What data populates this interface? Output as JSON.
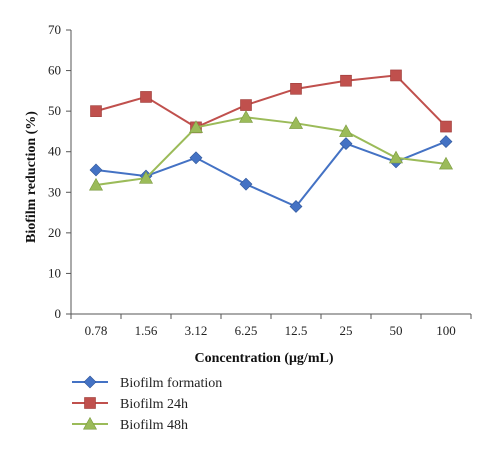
{
  "chart_data": {
    "type": "line",
    "xlabel": "Concentration (μg/mL)",
    "ylabel": "Biofilm reduction (%)",
    "ylim": [
      0,
      70
    ],
    "yticks": [
      0,
      10,
      20,
      30,
      40,
      50,
      60,
      70
    ],
    "categories": [
      "0.78",
      "1.56",
      "3.12",
      "6.25",
      "12.5",
      "25",
      "50",
      "100"
    ],
    "grid": false,
    "legend_position": "bottom-left",
    "series": [
      {
        "name": "Biofilm formation",
        "color": "#4472c4",
        "marker": "diamond",
        "values": [
          35.5,
          34,
          38.5,
          32,
          26.5,
          42,
          37.5,
          42.5
        ]
      },
      {
        "name": "Biofilm 24h",
        "color": "#c0504d",
        "marker": "square",
        "values": [
          50,
          53.5,
          46,
          51.5,
          55.5,
          57.5,
          58.8,
          46.2
        ]
      },
      {
        "name": "Biofilm 48h",
        "color": "#9bbb59",
        "marker": "triangle",
        "values": [
          31.8,
          33.5,
          46,
          48.5,
          47,
          45,
          38.5,
          37
        ]
      }
    ]
  }
}
